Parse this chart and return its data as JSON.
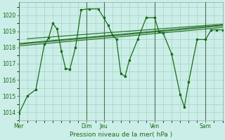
{
  "background_color": "#cceee8",
  "grid_color": "#99ccbb",
  "line_color": "#1a6b1a",
  "marker_color": "#1a6b1a",
  "xlabel": "Pression niveau de la mer( hPa )",
  "ylim": [
    1013.5,
    1020.8
  ],
  "yticks": [
    1014,
    1015,
    1016,
    1017,
    1018,
    1019,
    1020
  ],
  "xtick_labels": [
    "Mer",
    "Dim",
    "Jeu",
    "Ven",
    "Sam"
  ],
  "xtick_positions": [
    0,
    48,
    60,
    96,
    132
  ],
  "xlim": [
    0,
    144
  ],
  "vlines": [
    0,
    48,
    60,
    96,
    132
  ],
  "main_series": [
    [
      0,
      1013.9
    ],
    [
      6,
      1015.0
    ],
    [
      12,
      1015.4
    ],
    [
      18,
      1018.2
    ],
    [
      21,
      1018.6
    ],
    [
      24,
      1019.5
    ],
    [
      27,
      1019.15
    ],
    [
      30,
      1017.8
    ],
    [
      33,
      1016.7
    ],
    [
      36,
      1016.65
    ],
    [
      40,
      1018.0
    ],
    [
      44,
      1020.35
    ],
    [
      50,
      1020.4
    ],
    [
      56,
      1020.4
    ],
    [
      60,
      1019.85
    ],
    [
      63,
      1019.4
    ],
    [
      66,
      1018.8
    ],
    [
      69,
      1018.5
    ],
    [
      72,
      1016.4
    ],
    [
      75,
      1016.2
    ],
    [
      78,
      1017.2
    ],
    [
      84,
      1018.5
    ],
    [
      90,
      1019.85
    ],
    [
      96,
      1019.85
    ],
    [
      99,
      1019.0
    ],
    [
      102,
      1018.9
    ],
    [
      108,
      1017.6
    ],
    [
      114,
      1015.1
    ],
    [
      117,
      1014.3
    ],
    [
      120,
      1015.85
    ],
    [
      126,
      1018.5
    ],
    [
      132,
      1018.5
    ],
    [
      136,
      1019.1
    ],
    [
      140,
      1019.1
    ],
    [
      144,
      1019.1
    ]
  ],
  "trend_lines": [
    [
      [
        0,
        144
      ],
      [
        1018.1,
        1019.25
      ]
    ],
    [
      [
        0,
        144
      ],
      [
        1018.2,
        1019.35
      ]
    ],
    [
      [
        0,
        144
      ],
      [
        1018.25,
        1019.4
      ]
    ],
    [
      [
        6,
        144
      ],
      [
        1018.55,
        1019.45
      ]
    ]
  ]
}
